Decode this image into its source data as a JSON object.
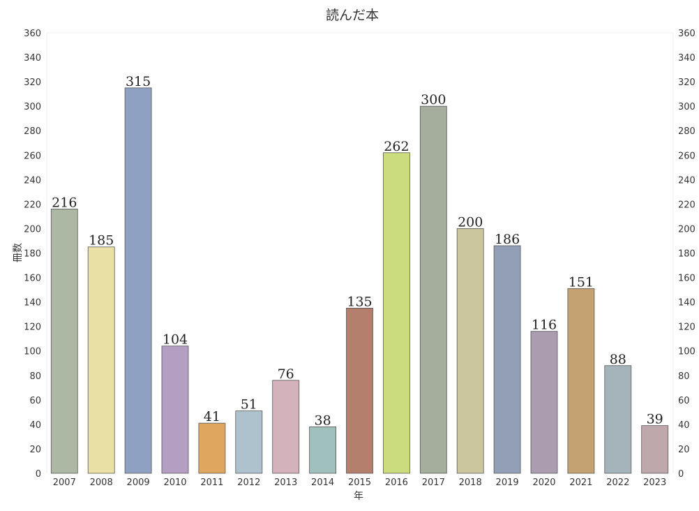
{
  "chart_data": {
    "type": "bar",
    "title": "読んだ本",
    "xlabel": "年",
    "ylabel": "冊数",
    "categories": [
      "2007",
      "2008",
      "2009",
      "2010",
      "2011",
      "2012",
      "2013",
      "2014",
      "2015",
      "2016",
      "2017",
      "2018",
      "2019",
      "2020",
      "2021",
      "2022",
      "2023"
    ],
    "values": [
      216,
      185,
      315,
      104,
      41,
      51,
      76,
      38,
      135,
      262,
      300,
      200,
      186,
      116,
      151,
      88,
      39
    ],
    "ylim": [
      0,
      360
    ],
    "yticks": [
      0,
      20,
      40,
      60,
      80,
      100,
      120,
      140,
      160,
      180,
      200,
      220,
      240,
      260,
      280,
      300,
      320,
      340,
      360
    ],
    "secondary_y_axis": true,
    "grid": false,
    "legend": "none",
    "colors": [
      "#acb8a3",
      "#e9e0a5",
      "#8ea1c2",
      "#b49ec2",
      "#dea65e",
      "#adc2cc",
      "#d4b2bc",
      "#9fc0bd",
      "#b4806d",
      "#cadc7e",
      "#a5ae9c",
      "#ccc69f",
      "#939fb6",
      "#ab9cb0",
      "#c4a272",
      "#a5b4bb",
      "#bfa8ac"
    ]
  }
}
